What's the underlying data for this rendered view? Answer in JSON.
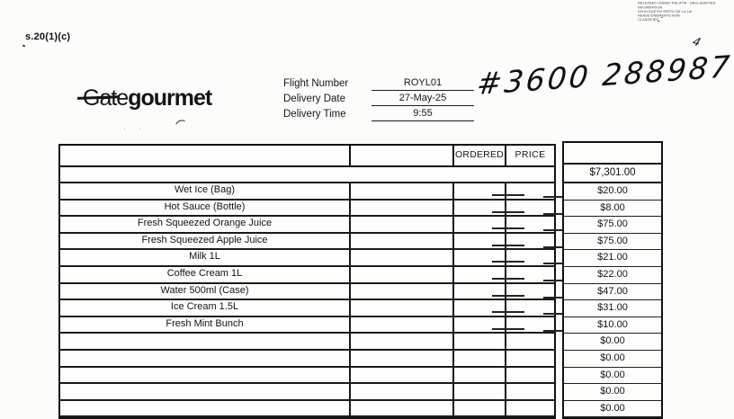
{
  "ink_color": "#161616",
  "page": {
    "section_ref": "s.20(1)(c)",
    "stamp": {
      "line1": "RELEASED UNDER THE ATIA - UNCLASSIFIED INFORMATION",
      "line2": "DIVULGUÉ EN VERTU DE LA LAI - RENSEIGNEMENTS NON",
      "line3": "CLASSIFIÉS"
    },
    "handwritten_number": "#3600 288987",
    "handwritten_mark": "4"
  },
  "logo": {
    "text_light": "Gate",
    "text_bold": "gourmet"
  },
  "delivery_info": {
    "fields": [
      {
        "label": "Flight Number",
        "value": "ROYL01"
      },
      {
        "label": "Delivery Date",
        "value": "27-May-25"
      },
      {
        "label": "Delivery Time",
        "value": "9:55"
      }
    ]
  },
  "table": {
    "headers": {
      "col1": "",
      "col2": "",
      "ordered": "ORDERED",
      "price": "PRICE",
      "amount": ""
    },
    "total_amount": "$7,301.00",
    "rows": [
      {
        "item": "Wet Ice (Bag)",
        "amount": "$20.00"
      },
      {
        "item": "Hot Sauce (Bottle)",
        "amount": "$8.00"
      },
      {
        "item": "Fresh Squeezed Orange Juice",
        "amount": "$75.00"
      },
      {
        "item": "Fresh Squeezed Apple Juice",
        "amount": "$75.00"
      },
      {
        "item": "Milk 1L",
        "amount": "$21.00"
      },
      {
        "item": "Coffee Cream 1L",
        "amount": "$22.00"
      },
      {
        "item": "Water 500ml (Case)",
        "amount": "$47.00"
      },
      {
        "item": "Ice Cream 1.5L",
        "amount": "$31.00"
      },
      {
        "item": "Fresh Mint Bunch",
        "amount": "$10.00"
      },
      {
        "item": "",
        "amount": "$0.00"
      },
      {
        "item": "",
        "amount": "$0.00"
      },
      {
        "item": "",
        "amount": "$0.00"
      },
      {
        "item": "",
        "amount": "$0.00"
      },
      {
        "item": "",
        "amount": "$0.00"
      }
    ]
  }
}
